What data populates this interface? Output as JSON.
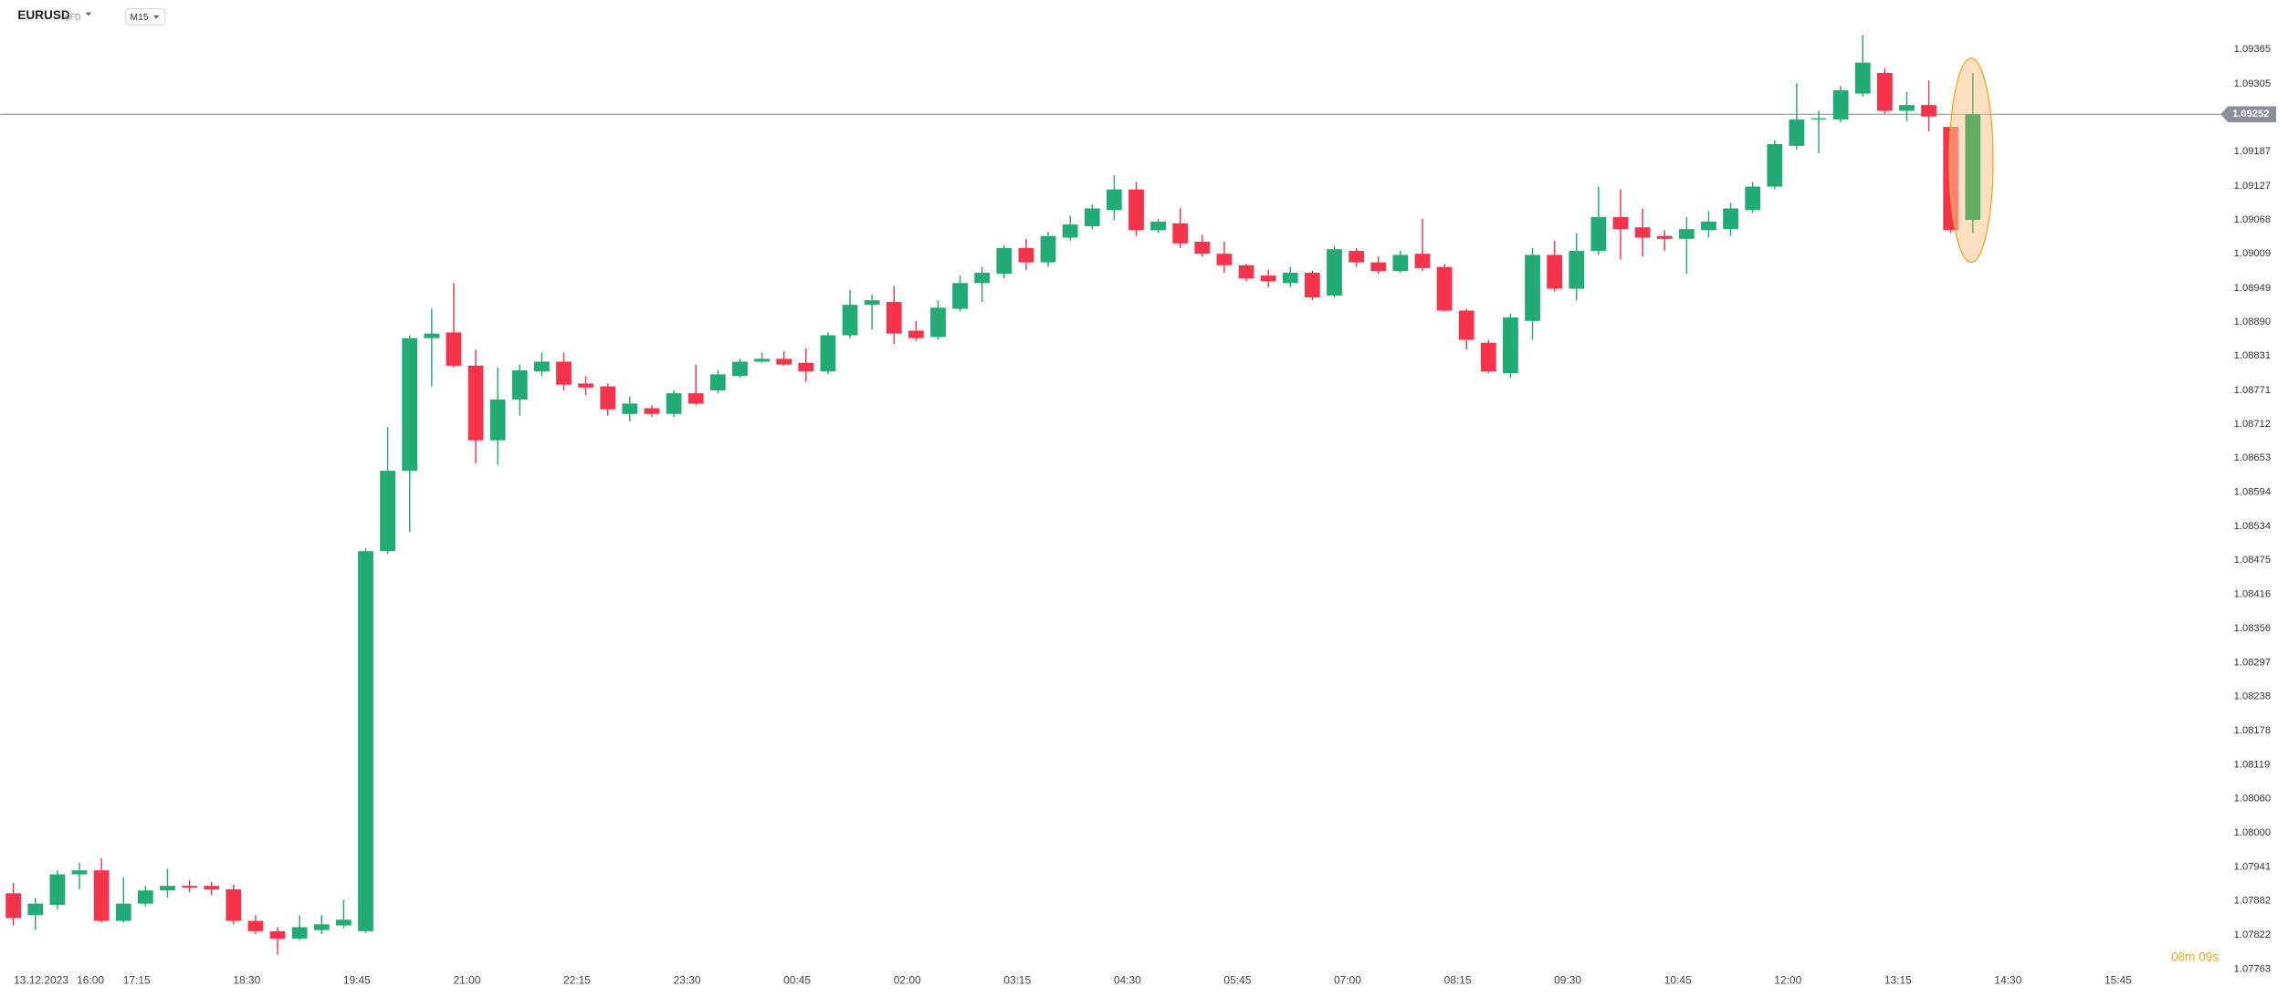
{
  "chart_data": {
    "type": "candlestick",
    "title": "EURUSD",
    "instrument_type": "CFD",
    "timeframe": "M15",
    "countdown": "08m 09s",
    "up_color": "#22ab74",
    "down_color": "#f5334a",
    "last_color": "#62ad62",
    "open": [
      1.07895,
      1.07857,
      1.07875,
      1.07928,
      1.07935,
      1.07847,
      1.07877,
      1.079,
      1.07908,
      1.07908,
      1.07902,
      1.07847,
      1.07829,
      1.07816,
      1.07831,
      1.07839,
      1.07829,
      1.08491,
      1.08631,
      1.08862,
      1.08872,
      1.08814,
      1.08684,
      1.08755,
      1.08804,
      1.08821,
      1.08783,
      1.08778,
      1.0873,
      1.0874,
      1.0873,
      1.08766,
      1.08771,
      1.08796,
      1.08821,
      1.08826,
      1.08819,
      1.08804,
      1.08867,
      1.0892,
      1.08925,
      1.08875,
      1.08864,
      1.08913,
      1.08958,
      1.08974,
      1.09019,
      1.08994,
      1.09037,
      1.09057,
      1.09085,
      1.09121,
      1.0905,
      1.09062,
      1.0903,
      1.09009,
      1.08989,
      1.08971,
      1.08958,
      1.08976,
      1.08936,
      1.09014,
      1.08994,
      1.08979,
      1.09009,
      1.08986,
      1.0891,
      1.08854,
      1.08801,
      1.08892,
      1.09007,
      1.08948,
      1.09014,
      1.09073,
      1.09055,
      1.0904,
      1.09035,
      1.0905,
      1.09052,
      1.09085,
      1.09126,
      1.09197,
      1.09243,
      1.09243,
      1.09288,
      1.09324,
      1.09258,
      1.09268,
      1.0923,
      1.09068
    ],
    "high": [
      1.07913,
      1.07887,
      1.07935,
      1.07948,
      1.07956,
      1.07923,
      1.07908,
      1.07938,
      1.07918,
      1.07915,
      1.0791,
      1.07857,
      1.07836,
      1.07857,
      1.07857,
      1.07884,
      1.08496,
      1.08707,
      1.08867,
      1.08913,
      1.08958,
      1.08842,
      1.08811,
      1.08816,
      1.08837,
      1.08837,
      1.08796,
      1.08783,
      1.0876,
      1.08745,
      1.08771,
      1.08816,
      1.08806,
      1.08826,
      1.08837,
      1.08839,
      1.08844,
      1.08872,
      1.08946,
      1.08938,
      1.08953,
      1.08892,
      1.08928,
      1.08971,
      1.08986,
      1.09024,
      1.09035,
      1.09047,
      1.09075,
      1.09095,
      1.09146,
      1.09134,
      1.0907,
      1.09088,
      1.09042,
      1.0903,
      1.08991,
      1.08981,
      1.08986,
      1.08979,
      1.09022,
      1.09019,
      1.09004,
      1.09014,
      1.0907,
      1.08991,
      1.08913,
      1.08859,
      1.08905,
      1.09019,
      1.09032,
      1.09045,
      1.09126,
      1.09121,
      1.09088,
      1.0905,
      1.09073,
      1.09083,
      1.09098,
      1.09134,
      1.09207,
      1.09306,
      1.09258,
      1.09301,
      1.0939,
      1.09332,
      1.09291,
      1.09311,
      1.09235,
      1.09324
    ],
    "low": [
      1.07839,
      1.07831,
      1.07867,
      1.07902,
      1.07844,
      1.07844,
      1.07872,
      1.07887,
      1.07897,
      1.07892,
      1.07841,
      1.07824,
      1.07788,
      1.07813,
      1.07824,
      1.07834,
      1.07826,
      1.08486,
      1.08524,
      1.08778,
      1.08811,
      1.08644,
      1.08641,
      1.08727,
      1.08796,
      1.08771,
      1.08763,
      1.08727,
      1.08717,
      1.08725,
      1.08725,
      1.08745,
      1.08766,
      1.08793,
      1.08819,
      1.08814,
      1.08786,
      1.08799,
      1.08862,
      1.08877,
      1.08852,
      1.08857,
      1.08859,
      1.08908,
      1.08925,
      1.08966,
      1.08981,
      1.08986,
      1.09032,
      1.09052,
      1.09068,
      1.0904,
      1.09045,
      1.09019,
      1.09004,
      1.08976,
      1.08961,
      1.08951,
      1.08951,
      1.08928,
      1.08933,
      1.08986,
      1.08974,
      1.08976,
      1.08979,
      1.08908,
      1.08842,
      1.08801,
      1.08793,
      1.08859,
      1.08943,
      1.08928,
      1.09007,
      1.08999,
      1.09004,
      1.09014,
      1.08974,
      1.09037,
      1.0904,
      1.0908,
      1.09121,
      1.0919,
      1.09184,
      1.09238,
      1.09283,
      1.09253,
      1.0924,
      1.09222,
      1.09045,
      1.09045
    ],
    "close": [
      1.07852,
      1.07877,
      1.07928,
      1.07935,
      1.07847,
      1.07877,
      1.079,
      1.07908,
      1.07905,
      1.07902,
      1.07847,
      1.07829,
      1.07816,
      1.07836,
      1.07841,
      1.07849,
      1.08491,
      1.08631,
      1.08862,
      1.0887,
      1.08814,
      1.08684,
      1.08755,
      1.08806,
      1.08821,
      1.08781,
      1.08776,
      1.08738,
      1.08748,
      1.0873,
      1.08766,
      1.08748,
      1.08799,
      1.08821,
      1.08826,
      1.08816,
      1.08804,
      1.08867,
      1.0892,
      1.08928,
      1.0887,
      1.08862,
      1.08915,
      1.08958,
      1.08976,
      1.09019,
      1.08994,
      1.0904,
      1.0906,
      1.09088,
      1.09121,
      1.0905,
      1.09065,
      1.09027,
      1.09009,
      1.08989,
      1.08966,
      1.08961,
      1.08976,
      1.08933,
      1.09017,
      1.08994,
      1.08979,
      1.09007,
      1.08984,
      1.0891,
      1.08859,
      1.08804,
      1.08898,
      1.09007,
      1.08948,
      1.09014,
      1.09073,
      1.09052,
      1.09037,
      1.09035,
      1.09052,
      1.09065,
      1.09088,
      1.09126,
      1.092,
      1.09243,
      1.09245,
      1.09294,
      1.09342,
      1.09258,
      1.09268,
      1.09248,
      1.0905,
      1.09252
    ],
    "current_price": 1.09252,
    "current_price_color": "#8a9099",
    "xlim": [
      -0.6,
      98.8
    ],
    "xticks": [
      {
        "value": 1.26,
        "label": "13.12.2023"
      },
      {
        "value": 3.5,
        "label": "16:00"
      },
      {
        "value": 5.6,
        "label": "17:15"
      },
      {
        "value": 10.6,
        "label": "18:30"
      },
      {
        "value": 15.6,
        "label": "19:45"
      },
      {
        "value": 20.6,
        "label": "21:00"
      },
      {
        "value": 25.6,
        "label": "22:15"
      },
      {
        "value": 30.6,
        "label": "23:30"
      },
      {
        "value": 35.6,
        "label": "00:45"
      },
      {
        "value": 40.6,
        "label": "02:00"
      },
      {
        "value": 45.6,
        "label": "03:15"
      },
      {
        "value": 50.6,
        "label": "04:30"
      },
      {
        "value": 55.6,
        "label": "05:45"
      },
      {
        "value": 60.6,
        "label": "07:00"
      },
      {
        "value": 65.6,
        "label": "08:15"
      },
      {
        "value": 70.6,
        "label": "09:30"
      },
      {
        "value": 75.6,
        "label": "10:45"
      },
      {
        "value": 80.6,
        "label": "12:00"
      },
      {
        "value": 85.6,
        "label": "13:15"
      },
      {
        "value": 90.6,
        "label": "14:30"
      },
      {
        "value": 95.6,
        "label": "15:45"
      }
    ],
    "ylim": [
      1.07754,
      1.09451
    ],
    "yticks": [
      1.09365,
      1.09305,
      1.09187,
      1.09127,
      1.09068,
      1.09009,
      1.08949,
      {
        "value": 1.0889,
        "label": "1.08890"
      },
      1.08831,
      1.08771,
      1.08712,
      1.08653,
      1.08594,
      1.08534,
      1.08475,
      1.08416,
      1.08356,
      1.08297,
      1.08238,
      1.08178,
      1.08119,
      {
        "value": 1.0806,
        "label": "1.08060"
      },
      {
        "value": 1.08,
        "label": "1.08000"
      },
      1.07941,
      1.07882,
      1.07822,
      1.07763
    ],
    "grid": false
  }
}
